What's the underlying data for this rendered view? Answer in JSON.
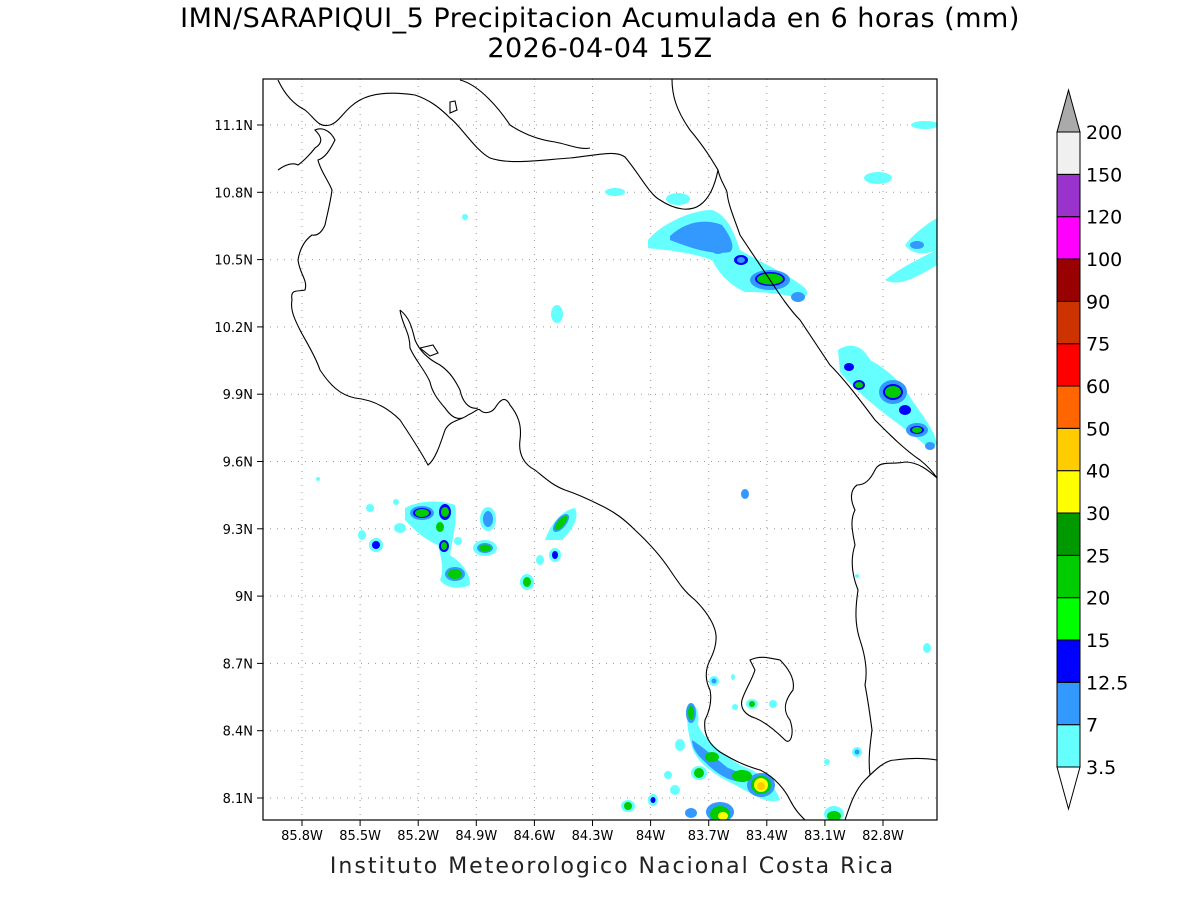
{
  "title_line1": "IMN/SARAPIQUI_5 Precipitacion Acumulada en 6 horas (mm)",
  "title_line2": "2026-04-04 15Z",
  "footer": "Instituto Meteorologico Nacional Costa Rica",
  "axes": {
    "lon_labels": [
      "85.8W",
      "85.5W",
      "85.2W",
      "84.9W",
      "84.6W",
      "84.3W",
      "84W",
      "83.7W",
      "83.4W",
      "83.1W",
      "82.8W"
    ],
    "lat_labels": [
      "11.1N",
      "10.8N",
      "10.5N",
      "10.2N",
      "9.9N",
      "9.6N",
      "9.3N",
      "9N",
      "8.7N",
      "8.4N",
      "8.1N"
    ],
    "grid": "dotted"
  },
  "colorbar": {
    "labels": [
      "3.5",
      "7",
      "12.5",
      "15",
      "20",
      "25",
      "30",
      "40",
      "50",
      "60",
      "75",
      "90",
      "100",
      "120",
      "150",
      "200"
    ],
    "colors": [
      "#66ffff",
      "#3399ff",
      "#0000ff",
      "#00ff00",
      "#00cc00",
      "#009900",
      "#ffff00",
      "#ffcc00",
      "#ff6600",
      "#ff0000",
      "#cc3300",
      "#990000",
      "#ff00ff",
      "#9933cc",
      "#f0f0f0",
      "#aaaaaa"
    ]
  }
}
